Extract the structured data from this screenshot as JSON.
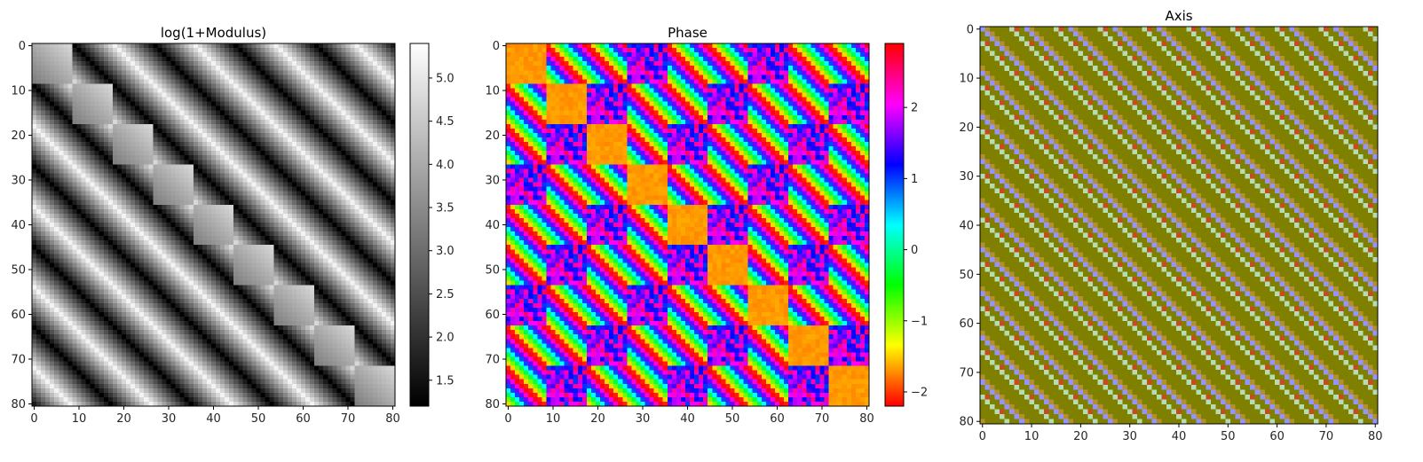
{
  "chart_data": [
    {
      "type": "heatmap",
      "title": "log(1+Modulus)",
      "matrix_size": 81,
      "block_size": 9,
      "xticks": [
        0,
        10,
        20,
        30,
        40,
        50,
        60,
        70,
        80
      ],
      "yticks": [
        0,
        10,
        20,
        30,
        40,
        50,
        60,
        70,
        80
      ],
      "colormap": "gray",
      "colorbar": {
        "min": 1.2,
        "max": 5.4,
        "ticks": [
          1.5,
          2.0,
          2.5,
          3.0,
          3.5,
          4.0,
          4.5,
          5.0
        ],
        "tick_labels": [
          "1.5",
          "2.0",
          "2.5",
          "3.0",
          "3.5",
          "4.0",
          "4.5",
          "5.0"
        ]
      }
    },
    {
      "type": "heatmap",
      "title": "Phase",
      "matrix_size": 81,
      "block_size": 9,
      "xticks": [
        0,
        10,
        20,
        30,
        40,
        50,
        60,
        70,
        80
      ],
      "yticks": [
        0,
        10,
        20,
        30,
        40,
        50,
        60,
        70,
        80
      ],
      "colormap": "hsv",
      "colorbar": {
        "min": -2.2,
        "max": 2.9,
        "ticks": [
          -2,
          -1,
          0,
          1,
          2
        ],
        "tick_labels": [
          "−2",
          "−1",
          "0",
          "1",
          "2"
        ]
      }
    },
    {
      "type": "heatmap",
      "title": "Axis",
      "matrix_size": 81,
      "xticks": [
        0,
        10,
        20,
        30,
        40,
        50,
        60,
        70,
        80
      ],
      "yticks": [
        0,
        10,
        20,
        30,
        40,
        50,
        60,
        70,
        80
      ],
      "colors": {
        "background": "#808000",
        "diagonal_stripe": "#9494ff",
        "light_stripe": "#b4ddb4",
        "secondary_stripe": "#b38f2e",
        "red_stripe": "#c94a1e"
      }
    }
  ]
}
